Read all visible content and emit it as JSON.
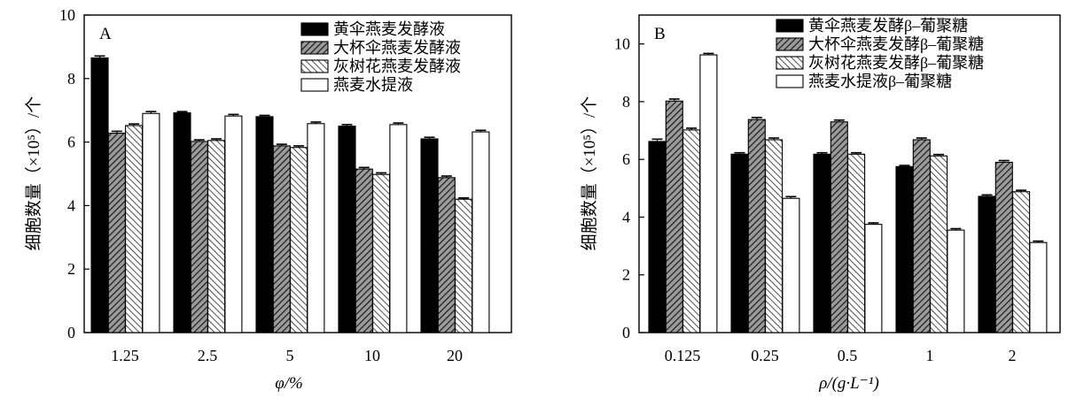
{
  "chart_data": [
    {
      "type": "bar",
      "panel_label": "A",
      "categories": [
        "1.25",
        "2.5",
        "5",
        "10",
        "20"
      ],
      "series": [
        {
          "name": "黄伞燕麦发酵液",
          "values": [
            8.65,
            6.92,
            6.8,
            6.5,
            6.1
          ],
          "errors": [
            0.06,
            0.04,
            0.04,
            0.05,
            0.05
          ]
        },
        {
          "name": "大杯伞燕麦发酵液",
          "values": [
            6.28,
            6.02,
            5.88,
            5.15,
            4.88
          ],
          "errors": [
            0.06,
            0.05,
            0.05,
            0.05,
            0.05
          ]
        },
        {
          "name": "灰树花燕麦发酵液",
          "values": [
            6.52,
            6.05,
            5.83,
            4.98,
            4.2
          ],
          "errors": [
            0.05,
            0.05,
            0.05,
            0.05,
            0.04
          ]
        },
        {
          "name": "燕麦水提液",
          "values": [
            6.9,
            6.82,
            6.58,
            6.55,
            6.32
          ],
          "errors": [
            0.06,
            0.05,
            0.05,
            0.05,
            0.05
          ]
        }
      ],
      "xlabel": "φ/%",
      "ylabel": "细胞数量（×10⁵）/个",
      "ylim": [
        0,
        10
      ],
      "yticks": [
        0,
        2,
        4,
        6,
        8,
        10
      ],
      "legend_position": "top-right"
    },
    {
      "type": "bar",
      "panel_label": "B",
      "categories": [
        "0.125",
        "0.25",
        "0.5",
        "1",
        "2"
      ],
      "series": [
        {
          "name": "黄伞燕麦发酵β–葡聚糖",
          "values": [
            6.62,
            6.18,
            6.18,
            5.75,
            4.72
          ],
          "errors": [
            0.08,
            0.05,
            0.05,
            0.04,
            0.05
          ]
        },
        {
          "name": "大杯伞燕麦发酵β–葡聚糖",
          "values": [
            8.02,
            7.38,
            7.3,
            6.68,
            5.9
          ],
          "errors": [
            0.07,
            0.07,
            0.06,
            0.06,
            0.06
          ]
        },
        {
          "name": "灰树花燕麦发酵β–葡聚糖",
          "values": [
            7.02,
            6.68,
            6.18,
            6.12,
            4.88
          ],
          "errors": [
            0.06,
            0.06,
            0.05,
            0.05,
            0.05
          ]
        },
        {
          "name": "燕麦水提液β–葡聚糖",
          "values": [
            9.62,
            4.65,
            3.75,
            3.55,
            3.12
          ],
          "errors": [
            0.05,
            0.06,
            0.05,
            0.05,
            0.05
          ]
        }
      ],
      "xlabel": "ρ/(g·L⁻¹)",
      "ylabel": "细胞数量（×10⁵）/个",
      "ylim": [
        0,
        11
      ],
      "yticks": [
        0,
        2,
        4,
        6,
        8,
        10
      ],
      "legend_position": "top-right"
    }
  ]
}
